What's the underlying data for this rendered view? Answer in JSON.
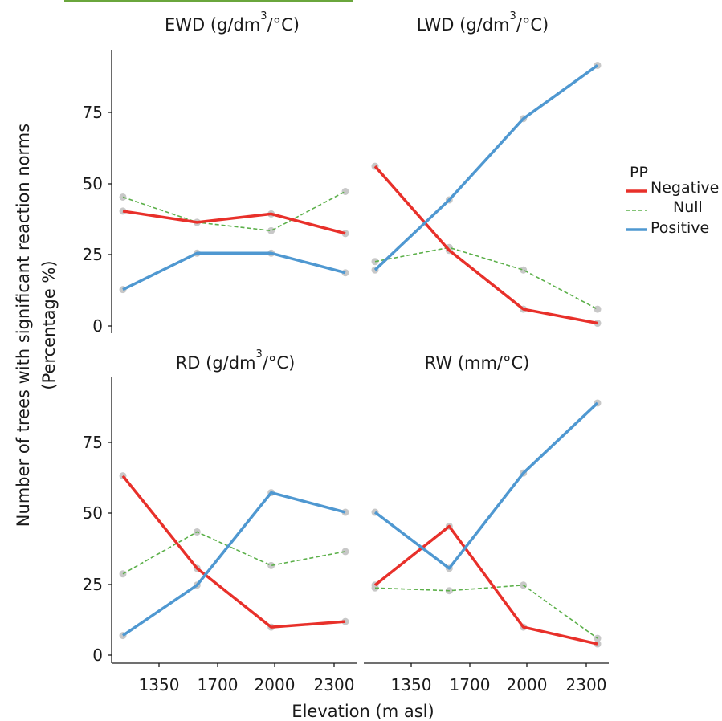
{
  "colors": {
    "negative": "#e8302a",
    "null": "#5cb04a",
    "positive": "#4f98d1",
    "point": "#c8c8c8",
    "top_rule": "#6aa63c"
  },
  "ylabel": [
    "Number of trees with significant reaction norms",
    "(Percentage %)"
  ],
  "xlabel": "Elevation (m asl)",
  "legend": {
    "title": "PP",
    "items": [
      "Negative",
      "Null",
      "Positive"
    ]
  },
  "x_ticks": [
    "1350",
    "1700",
    "2000",
    "2300"
  ],
  "y_ticks": [
    "0",
    "25",
    "50",
    "75"
  ],
  "panels": [
    {
      "title_main": "EWD (g/dm",
      "title_sup": "3",
      "title_end": "/°C)"
    },
    {
      "title_main": "LWD (g/dm",
      "title_sup": "3",
      "title_end": "/°C)"
    },
    {
      "title_main": "RD (g/dm",
      "title_sup": "3",
      "title_end": "/°C)"
    },
    {
      "title_main": "RW (mm/°C)",
      "title_sup": "",
      "title_end": ""
    }
  ],
  "chart_data": [
    {
      "type": "line",
      "panel": "EWD",
      "x": [
        1150,
        1650,
        2000,
        2350
      ],
      "xlim": [
        1130,
        2430
      ],
      "ylim": [
        0,
        96
      ],
      "series": [
        {
          "name": "Negative",
          "values": [
            41,
            37,
            40,
            33
          ]
        },
        {
          "name": "Null",
          "values": [
            46,
            37,
            34,
            48
          ]
        },
        {
          "name": "Positive",
          "values": [
            13,
            26,
            26,
            19
          ]
        }
      ]
    },
    {
      "type": "line",
      "panel": "LWD",
      "x": [
        1150,
        1650,
        2000,
        2350
      ],
      "xlim": [
        1130,
        2430
      ],
      "ylim": [
        0,
        96
      ],
      "series": [
        {
          "name": "Negative",
          "values": [
            57,
            27,
            6,
            1
          ]
        },
        {
          "name": "Null",
          "values": [
            23,
            28,
            20,
            6
          ]
        },
        {
          "name": "Positive",
          "values": [
            20,
            45,
            74,
            93
          ]
        }
      ]
    },
    {
      "type": "line",
      "panel": "RD",
      "x": [
        1150,
        1650,
        2000,
        2350
      ],
      "xlim": [
        1130,
        2430
      ],
      "ylim": [
        0,
        96
      ],
      "series": [
        {
          "name": "Negative",
          "values": [
            64,
            31,
            10,
            12
          ]
        },
        {
          "name": "Null",
          "values": [
            29,
            44,
            32,
            37
          ]
        },
        {
          "name": "Positive",
          "values": [
            7,
            25,
            58,
            51
          ]
        }
      ]
    },
    {
      "type": "line",
      "panel": "RW",
      "x": [
        1150,
        1650,
        2000,
        2350
      ],
      "xlim": [
        1130,
        2430
      ],
      "ylim": [
        0,
        96
      ],
      "series": [
        {
          "name": "Negative",
          "values": [
            25,
            46,
            10,
            4
          ]
        },
        {
          "name": "Null",
          "values": [
            24,
            23,
            25,
            6
          ]
        },
        {
          "name": "Positive",
          "values": [
            51,
            31,
            65,
            90
          ]
        }
      ]
    }
  ]
}
